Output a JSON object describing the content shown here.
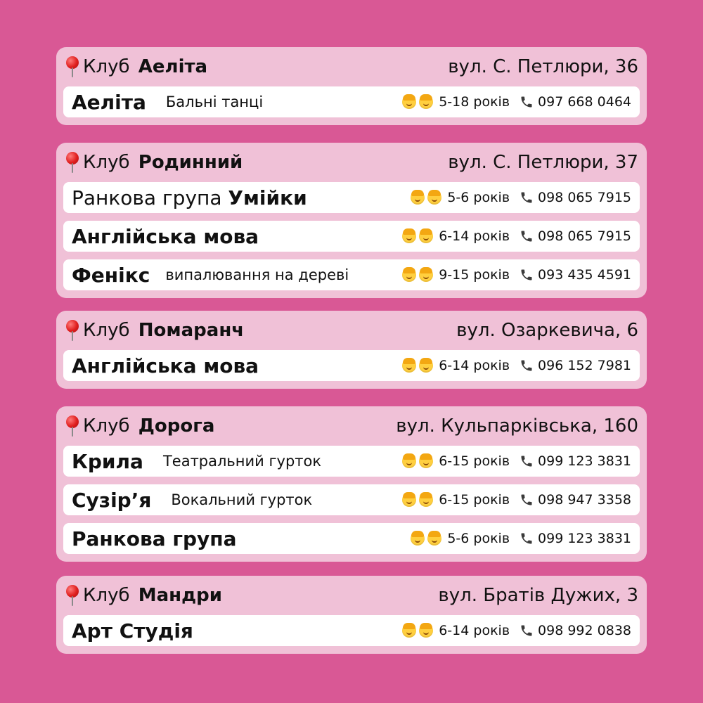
{
  "clubs": [
    {
      "club_word": "Клуб",
      "name": "Аеліта",
      "address": "вул. С. Петлюри, 36",
      "rows": [
        {
          "title": "Аеліта",
          "desc": "Бальні танці",
          "ages": "5-18 років",
          "phone": "097 668 0464"
        }
      ]
    },
    {
      "club_word": "Клуб",
      "name": "Родинний",
      "address": "вул. С. Петлюри, 37",
      "rows": [
        {
          "title_light": "Ранкова група ",
          "title": "Умійки",
          "ages": "5-6 років",
          "phone": "098 065 7915"
        },
        {
          "title": "Англійська мова",
          "ages": "6-14 років",
          "phone": "098 065 7915"
        },
        {
          "title": "Фенікс",
          "desc": "випалювання на дереві",
          "ages": "9-15 років",
          "phone": "093 435 4591"
        }
      ]
    },
    {
      "club_word": "Клуб",
      "name": "Помаранч",
      "address": "вул. Озаркевича, 6",
      "rows": [
        {
          "title": "Англійська мова",
          "ages": "6-14 років",
          "phone": "096 152 7981"
        }
      ]
    },
    {
      "club_word": "Клуб",
      "name": "Дорога",
      "address": "вул. Кульпарківська, 160",
      "rows": [
        {
          "title": "Крила",
          "desc": "Театральний гурток",
          "ages": "6-15 років",
          "phone": "099 123 3831"
        },
        {
          "title": "Сузір’я",
          "desc": "Вокальний гурток",
          "ages": "6-15 років",
          "phone": "098 947 3358"
        },
        {
          "title": "Ранкова група",
          "ages": "5-6 років",
          "phone": "099 123 3831"
        }
      ]
    },
    {
      "club_word": "Клуб",
      "name": "Мандри",
      "address": "вул. Братів Дужих, 3",
      "rows": [
        {
          "title": "Арт Студія",
          "ages": "6-14 років",
          "phone": "098 992 0838"
        }
      ]
    }
  ],
  "icons": {
    "location": "round-pushpin-icon",
    "girl": "girl-face-icon",
    "boy": "boy-face-icon",
    "phone": "telephone-receiver-icon"
  },
  "colors": {
    "background": "#d95895",
    "card": "#f0c1d7",
    "row": "#ffffff",
    "text": "#111111"
  }
}
